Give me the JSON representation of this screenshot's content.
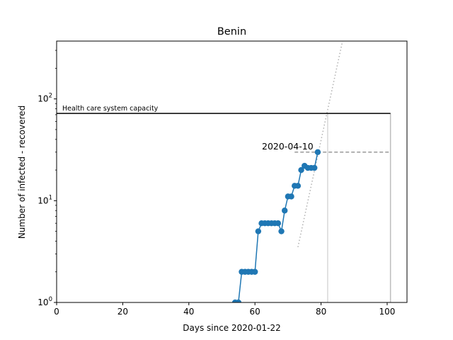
{
  "chart_data": {
    "type": "scatter",
    "title": "Benin",
    "xlabel": "Days since 2020-01-22",
    "ylabel": "Number of infected - recovered",
    "xlim": [
      0,
      106
    ],
    "ylim": [
      1,
      370
    ],
    "yscale": "log",
    "x_ticks": [
      0,
      20,
      40,
      60,
      80,
      100
    ],
    "y_ticks": [
      1,
      10,
      100
    ],
    "y_tick_labels": [
      "10^0",
      "10^1",
      "10^2"
    ],
    "grid": false,
    "colors": {
      "series": "#1f77b4",
      "capacity": "#000000",
      "projection": "#b0b0b0",
      "marker_lines": "#999999"
    },
    "series": [
      {
        "x": [
          54,
          55,
          56,
          57,
          58,
          59,
          60,
          61,
          62,
          63,
          64,
          65,
          66,
          67,
          68,
          69,
          70,
          71,
          72,
          73,
          74,
          75,
          76,
          77,
          78,
          79
        ],
        "y": [
          1,
          1,
          2,
          2,
          2,
          2,
          2,
          5,
          6,
          6,
          6,
          6,
          6,
          6,
          5,
          8,
          11,
          11,
          14,
          14,
          20,
          22,
          21,
          21,
          21,
          30
        ]
      }
    ],
    "capacity": {
      "label": "Health care system capacity",
      "y": 72,
      "x_range": [
        0,
        101
      ]
    },
    "projection_line": {
      "x": [
        73,
        86.5
      ],
      "y": [
        3.5,
        370
      ]
    },
    "current_marker": {
      "label": "2020-04-10",
      "x": 79,
      "y": 30,
      "x_end": 101
    },
    "vertical_markers": [
      82,
      101
    ]
  }
}
